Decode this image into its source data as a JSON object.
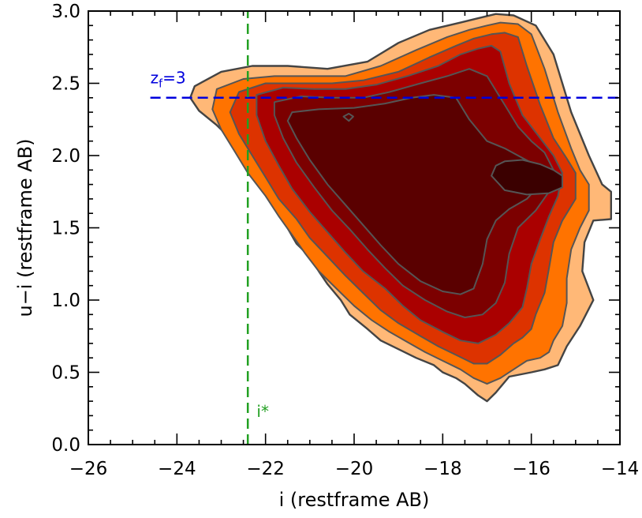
{
  "chart_data": {
    "type": "contour",
    "title": "",
    "xlabel": "i (restframe AB)",
    "ylabel": "u−i (restframe AB)",
    "xlim": [
      -26,
      -14
    ],
    "ylim": [
      0.0,
      3.0
    ],
    "x_ticks": [
      -26,
      -24,
      -22,
      -20,
      -18,
      -16,
      -14
    ],
    "x_tick_labels": [
      "−26",
      "−24",
      "−22",
      "−20",
      "−18",
      "−16",
      "−14"
    ],
    "y_ticks": [
      0.0,
      0.5,
      1.0,
      1.5,
      2.0,
      2.5,
      3.0
    ],
    "y_tick_labels": [
      "0.0",
      "0.5",
      "1.0",
      "1.5",
      "2.0",
      "2.5",
      "3.0"
    ],
    "grid": false,
    "legend": "none",
    "level_colors": [
      "#ffb877",
      "#ff7300",
      "#dd3300",
      "#aa0000",
      "#7c0000",
      "#5a0000",
      "#3b0000",
      "#000000"
    ],
    "contour_line_colors": {
      "outer": "#444444",
      "inner": "#555555"
    },
    "levels": [
      {
        "level": 1,
        "x": [
          -23.6,
          -23.0,
          -22.3,
          -21.5,
          -20.6,
          -19.7,
          -19.0,
          -18.3,
          -17.6,
          -17.2,
          -16.8,
          -16.4,
          -15.9,
          -15.5,
          -15.1,
          -14.7,
          -14.4,
          -14.2,
          -14.2,
          -14.6,
          -14.8,
          -14.85,
          -14.6,
          -14.9,
          -15.2,
          -15.4,
          -15.7,
          -16.0,
          -16.5,
          -16.8,
          -17.0,
          -17.2,
          -17.5,
          -17.7,
          -18.0,
          -18.2,
          -18.6,
          -19.0,
          -19.4,
          -19.7,
          -20.1,
          -20.3,
          -20.6,
          -20.8,
          -21.0,
          -21.3,
          -21.6,
          -21.9,
          -22.2,
          -22.5,
          -22.8,
          -23.1,
          -23.5,
          -23.7
        ],
        "y": [
          2.48,
          2.58,
          2.62,
          2.62,
          2.6,
          2.65,
          2.78,
          2.87,
          2.92,
          2.95,
          2.98,
          2.97,
          2.9,
          2.7,
          2.3,
          2.0,
          1.8,
          1.75,
          1.56,
          1.55,
          1.4,
          1.2,
          1.0,
          0.82,
          0.68,
          0.55,
          0.52,
          0.5,
          0.47,
          0.36,
          0.3,
          0.34,
          0.42,
          0.46,
          0.5,
          0.55,
          0.6,
          0.66,
          0.72,
          0.8,
          0.9,
          1.0,
          1.11,
          1.2,
          1.3,
          1.39,
          1.55,
          1.7,
          1.86,
          2.0,
          2.12,
          2.21,
          2.31,
          2.4
        ]
      },
      {
        "level": 2,
        "x": [
          -23.1,
          -22.5,
          -21.8,
          -21.0,
          -20.2,
          -19.4,
          -18.6,
          -17.9,
          -17.4,
          -17.0,
          -16.7,
          -16.3,
          -16.0,
          -15.7,
          -15.4,
          -15.1,
          -14.9,
          -14.7,
          -14.7,
          -14.9,
          -15.1,
          -15.2,
          -15.2,
          -15.3,
          -15.5,
          -15.6,
          -15.8,
          -16.1,
          -16.4,
          -16.7,
          -17.0,
          -17.3,
          -17.6,
          -18.0,
          -18.4,
          -18.8,
          -19.2,
          -19.6,
          -20.0,
          -20.4,
          -20.8,
          -21.1,
          -21.4,
          -21.7,
          -22.0,
          -22.4,
          -22.7,
          -23.0,
          -23.2
        ],
        "y": [
          2.46,
          2.53,
          2.55,
          2.55,
          2.55,
          2.62,
          2.73,
          2.82,
          2.87,
          2.9,
          2.92,
          2.91,
          2.84,
          2.6,
          2.3,
          2.05,
          1.9,
          1.8,
          1.62,
          1.5,
          1.35,
          1.15,
          0.98,
          0.82,
          0.72,
          0.64,
          0.6,
          0.58,
          0.52,
          0.46,
          0.42,
          0.46,
          0.52,
          0.58,
          0.64,
          0.71,
          0.78,
          0.86,
          0.96,
          1.08,
          1.2,
          1.32,
          1.45,
          1.58,
          1.72,
          1.88,
          2.03,
          2.18,
          2.32
        ]
      },
      {
        "level": 3,
        "x": [
          -22.6,
          -22.0,
          -21.3,
          -20.5,
          -19.8,
          -19.0,
          -18.3,
          -17.7,
          -17.3,
          -16.9,
          -16.6,
          -16.3,
          -16.1,
          -15.8,
          -15.5,
          -15.2,
          -15.0,
          -15.0,
          -15.3,
          -15.5,
          -15.6,
          -15.7,
          -15.9,
          -16.0,
          -16.2,
          -16.4,
          -16.7,
          -17.0,
          -17.3,
          -17.7,
          -18.1,
          -18.5,
          -19.0,
          -19.4,
          -19.8,
          -20.2,
          -20.6,
          -21.0,
          -21.3,
          -21.7,
          -22.0,
          -22.3,
          -22.6,
          -22.8
        ],
        "y": [
          2.44,
          2.5,
          2.5,
          2.5,
          2.52,
          2.58,
          2.68,
          2.76,
          2.81,
          2.84,
          2.85,
          2.82,
          2.62,
          2.35,
          2.12,
          1.98,
          1.88,
          1.7,
          1.55,
          1.4,
          1.22,
          1.05,
          0.9,
          0.8,
          0.74,
          0.7,
          0.62,
          0.56,
          0.56,
          0.62,
          0.68,
          0.75,
          0.84,
          0.93,
          1.05,
          1.17,
          1.3,
          1.43,
          1.56,
          1.7,
          1.85,
          2.0,
          2.15,
          2.3
        ]
      },
      {
        "level": 4,
        "x": [
          -22.2,
          -21.6,
          -20.9,
          -20.2,
          -19.5,
          -18.8,
          -18.1,
          -17.6,
          -17.2,
          -16.9,
          -16.7,
          -16.5,
          -16.2,
          -15.8,
          -15.5,
          -15.3,
          -15.4,
          -15.6,
          -15.8,
          -16.0,
          -16.1,
          -16.2,
          -16.5,
          -16.8,
          -17.2,
          -17.6,
          -18.0,
          -18.5,
          -18.9,
          -19.3,
          -19.8,
          -20.2,
          -20.6,
          -21.0,
          -21.4,
          -21.7,
          -22.0,
          -22.2
        ],
        "y": [
          2.42,
          2.47,
          2.46,
          2.46,
          2.49,
          2.55,
          2.62,
          2.7,
          2.74,
          2.76,
          2.72,
          2.5,
          2.28,
          2.12,
          2.0,
          1.88,
          1.72,
          1.58,
          1.42,
          1.25,
          1.08,
          0.95,
          0.84,
          0.76,
          0.7,
          0.72,
          0.78,
          0.86,
          0.96,
          1.08,
          1.2,
          1.33,
          1.47,
          1.61,
          1.77,
          1.93,
          2.1,
          2.28
        ]
      },
      {
        "level": 5,
        "x": [
          -21.8,
          -21.2,
          -20.5,
          -19.8,
          -19.2,
          -18.5,
          -17.9,
          -17.4,
          -17.0,
          -16.6,
          -16.3,
          -16.0,
          -15.7,
          -15.5,
          -15.6,
          -15.9,
          -16.3,
          -16.5,
          -16.6,
          -16.8,
          -17.1,
          -17.5,
          -17.9,
          -18.4,
          -18.9,
          -19.3,
          -19.7,
          -20.1,
          -20.5,
          -20.9,
          -21.3,
          -21.6,
          -21.8
        ],
        "y": [
          2.37,
          2.41,
          2.4,
          2.4,
          2.44,
          2.5,
          2.55,
          2.6,
          2.55,
          2.35,
          2.2,
          2.1,
          2.02,
          1.9,
          1.75,
          1.62,
          1.5,
          1.32,
          1.12,
          0.98,
          0.9,
          0.88,
          0.92,
          1.0,
          1.1,
          1.22,
          1.35,
          1.49,
          1.62,
          1.78,
          1.95,
          2.12,
          2.28
        ]
      },
      {
        "level": 6,
        "x": [
          -21.4,
          -20.8,
          -20.0,
          -19.3,
          -18.7,
          -18.2,
          -17.7,
          -17.4,
          -17.0,
          -16.6,
          -16.3,
          -16.0,
          -15.8,
          -15.8,
          -16.1,
          -16.5,
          -16.8,
          -17.0,
          -17.1,
          -17.3,
          -17.6,
          -18.0,
          -18.5,
          -19.0,
          -19.4,
          -19.8,
          -20.2,
          -20.6,
          -21.0,
          -21.3,
          -21.5
        ],
        "y": [
          2.3,
          2.32,
          2.33,
          2.36,
          2.4,
          2.42,
          2.4,
          2.25,
          2.1,
          2.05,
          2.0,
          1.95,
          1.9,
          1.8,
          1.7,
          1.63,
          1.55,
          1.42,
          1.25,
          1.08,
          1.04,
          1.06,
          1.13,
          1.25,
          1.38,
          1.52,
          1.66,
          1.8,
          1.97,
          2.12,
          2.24
        ]
      },
      {
        "level": 7,
        "x": [
          -16.6,
          -16.2,
          -15.8,
          -15.5,
          -15.3,
          -15.3,
          -15.6,
          -16.1,
          -16.6,
          -16.9,
          -16.8
        ],
        "y": [
          1.96,
          1.97,
          1.94,
          1.9,
          1.86,
          1.78,
          1.74,
          1.73,
          1.76,
          1.86,
          1.93
        ]
      }
    ],
    "islands": [
      {
        "level": 6,
        "x": [
          -20.24,
          -20.12,
          -20.02,
          -20.12
        ],
        "y": [
          2.27,
          2.29,
          2.27,
          2.24
        ]
      }
    ],
    "reference_lines": [
      {
        "orientation": "horizontal",
        "value": 2.4,
        "x_from": -24.6,
        "x_to": -14,
        "color": "#0000dd",
        "style": "dashed",
        "label": "z",
        "label_sub": "f",
        "label_suffix": "=3",
        "label_x": -24.6,
        "label_y": 2.5
      },
      {
        "orientation": "vertical",
        "value": -22.4,
        "y_from": 0.0,
        "y_to": 3.0,
        "color": "#22a022",
        "style": "dashed",
        "label": "i*",
        "label_x": -22.2,
        "label_y": 0.19
      }
    ]
  }
}
